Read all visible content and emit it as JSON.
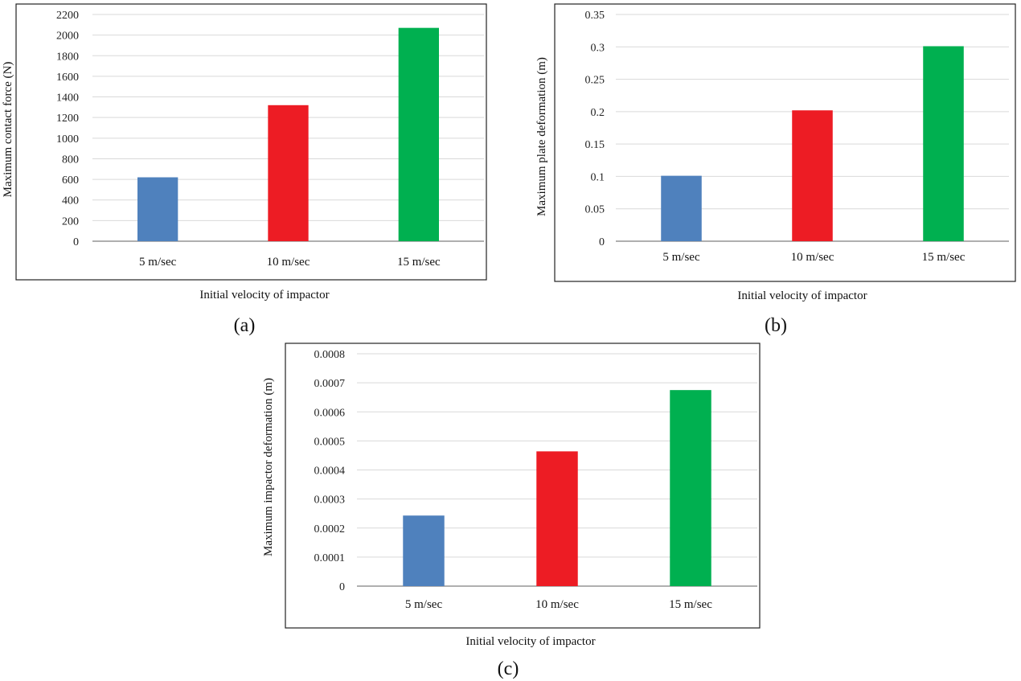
{
  "colors": {
    "bar_colors": [
      "#4f81bd",
      "#ed1c24",
      "#00b050"
    ],
    "grid": "#d9d9d9",
    "frame": "#222222",
    "axis": "#7f7f7f"
  },
  "chart_data": [
    {
      "type": "bar",
      "panel_label": "(a)",
      "categories": [
        "5 m/sec",
        "10 m/sec",
        "15 m/sec"
      ],
      "values": [
        620,
        1320,
        2070
      ],
      "ylim": [
        0,
        2200
      ],
      "yticks": [
        "0",
        "200",
        "400",
        "600",
        "800",
        "1000",
        "1200",
        "1400",
        "1600",
        "1800",
        "2000",
        "2200"
      ],
      "xlabel": "Initial velocity of impactor",
      "ylabel": "Maximum contact force (N)",
      "grid": true
    },
    {
      "type": "bar",
      "panel_label": "(b)",
      "categories": [
        "5 m/sec",
        "10 m/sec",
        "15 m/sec"
      ],
      "values": [
        0.101,
        0.202,
        0.301
      ],
      "ylim": [
        0,
        0.35
      ],
      "yticks": [
        "0",
        "0.05",
        "0.1",
        "0.15",
        "0.2",
        "0.25",
        "0.3",
        "0.35"
      ],
      "xlabel": "Initial velocity of impactor",
      "ylabel": "Maximum plate deformation  (m)",
      "grid": true
    },
    {
      "type": "bar",
      "panel_label": "(c)",
      "categories": [
        "5 m/sec",
        "10 m/sec",
        "15 m/sec"
      ],
      "values": [
        0.000243,
        0.000464,
        0.000675
      ],
      "ylim": [
        0,
        0.0008
      ],
      "yticks": [
        "0",
        "0.0001",
        "0.0002",
        "0.0003",
        "0.0004",
        "0.0005",
        "0.0006",
        "0.0007",
        "0.0008"
      ],
      "xlabel": "Initial velocity of impactor",
      "ylabel": "Maximum impactor deformation  (m)",
      "grid": true
    }
  ]
}
